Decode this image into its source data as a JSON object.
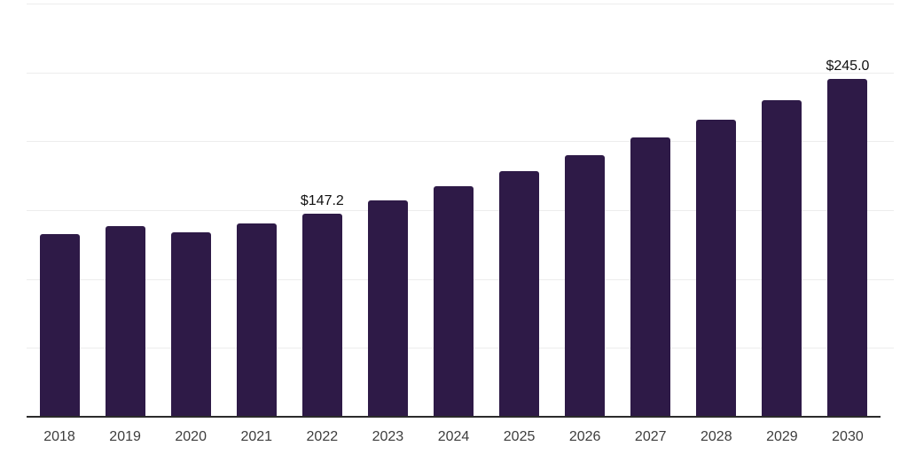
{
  "chart_data": {
    "type": "bar",
    "title": "",
    "xlabel": "",
    "ylabel": "",
    "categories": [
      "2018",
      "2019",
      "2020",
      "2021",
      "2022",
      "2023",
      "2024",
      "2025",
      "2026",
      "2027",
      "2028",
      "2029",
      "2030"
    ],
    "values": [
      132.6,
      138.2,
      133.7,
      140.3,
      147.2,
      156.9,
      167.2,
      178.2,
      190.0,
      202.5,
      215.8,
      230.0,
      245.0
    ],
    "data_labels": {
      "2022": "$147.2",
      "2030": "$245.0"
    },
    "ylim": [
      0,
      300
    ],
    "gridline_step": 50,
    "grid": "horizontal-only",
    "y_tick_labels_visible": false,
    "legend": "none"
  },
  "colors": {
    "background": "#FFFFFF",
    "bar": "#2E1A47",
    "gridline": "#EDEDED",
    "axis_line": "#2B2B2B",
    "x_tick_label": "#3D3D3D",
    "data_label": "#111111"
  }
}
